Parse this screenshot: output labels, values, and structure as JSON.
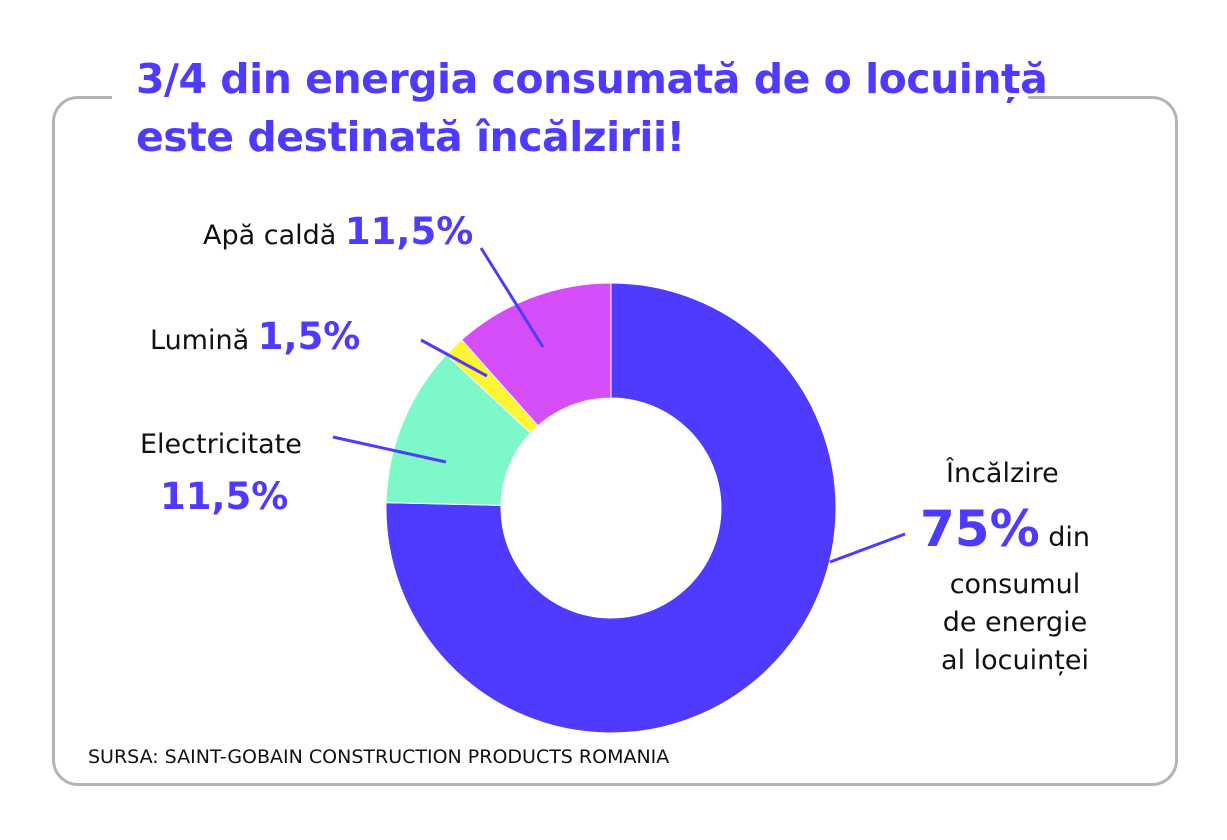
{
  "title": {
    "line1": "3/4 din energia consumată de o locuință",
    "line2": "este destinată încălzirii!"
  },
  "chart_data": {
    "type": "pie",
    "title": "3/4 din energia consumată de o locuință este destinată încălzirii!",
    "slices": [
      {
        "label": "Încălzire",
        "value": 75,
        "value_label": "75%",
        "color": "#4f3bff"
      },
      {
        "label": "Electricitate",
        "value": 11.5,
        "value_label": "11,5%",
        "color": "#7ef7c9"
      },
      {
        "label": "Lumină",
        "value": 1.5,
        "value_label": "1,5%",
        "color": "#fff531"
      },
      {
        "label": "Apă caldă",
        "value": 11.5,
        "value_label": "11,5%",
        "color": "#d64dfa"
      }
    ],
    "donut": true,
    "legend": "none"
  },
  "labels": {
    "incalzire_suffix": "din",
    "incalzire_line2": "consumul",
    "incalzire_line3": "de energie",
    "incalzire_line4": "al locuinței"
  },
  "source": "SURSA: SAINT-GOBAIN CONSTRUCTION PRODUCTS ROMANIA"
}
